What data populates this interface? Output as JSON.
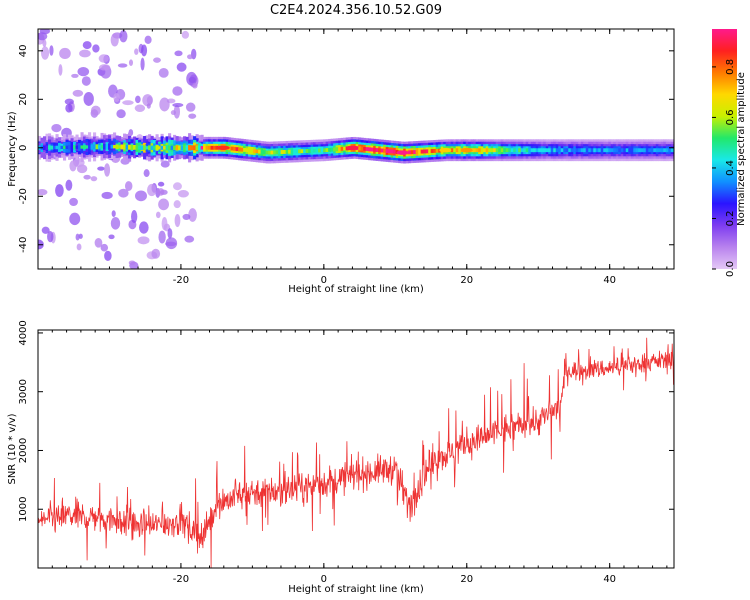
{
  "figure": {
    "title": "C2E4.2024.356.10.52.G09"
  },
  "chart_data": [
    {
      "type": "heatmap",
      "xlabel": "Height of straight line (km)",
      "ylabel": "Frequency (Hz)",
      "xlim": [
        -40,
        49
      ],
      "ylim": [
        -50,
        49
      ],
      "xticks": [
        -20,
        0,
        20,
        40
      ],
      "yticks": [
        -40,
        -20,
        0,
        20,
        40
      ],
      "colorbar": {
        "label": "Normalized spectral amplitude",
        "range": [
          0,
          0.95
        ],
        "ticks": [
          0.0,
          0.2,
          0.4,
          0.6,
          0.8
        ],
        "colormap": [
          "#e4c8f6",
          "#b882ee",
          "#7d3cf0",
          "#2a14ff",
          "#1090ff",
          "#19e8e8",
          "#22e86a",
          "#c8f000",
          "#ffd800",
          "#ff7a00",
          "#ff2020",
          "#ff1a8c"
        ]
      },
      "ridge": [
        {
          "x": -40,
          "y": 0,
          "amplitude": 0.35
        },
        {
          "x": -30,
          "y": 0.5,
          "amplitude": 0.4
        },
        {
          "x": -25,
          "y": 0,
          "amplitude": 0.6
        },
        {
          "x": -20,
          "y": 0,
          "amplitude": 0.55
        },
        {
          "x": -14,
          "y": 0,
          "amplitude": 0.85
        },
        {
          "x": -8,
          "y": -2,
          "amplitude": 0.6
        },
        {
          "x": 0,
          "y": -1,
          "amplitude": 0.5
        },
        {
          "x": 4,
          "y": 0,
          "amplitude": 0.9
        },
        {
          "x": 11,
          "y": -2,
          "amplitude": 0.95
        },
        {
          "x": 17,
          "y": -1,
          "amplitude": 0.7
        },
        {
          "x": 20,
          "y": -1,
          "amplitude": 0.75
        },
        {
          "x": 30,
          "y": -1,
          "amplitude": 0.4
        },
        {
          "x": 40,
          "y": -1,
          "amplitude": 0.35
        },
        {
          "x": 49,
          "y": -1,
          "amplitude": 0.35
        }
      ],
      "scatter_region": {
        "x": [
          -40,
          -18
        ],
        "y": [
          -50,
          49
        ],
        "amplitude": 0.1
      }
    },
    {
      "type": "line",
      "xlabel": "Height of straight line (km)",
      "ylabel": "SNR (10 * v/v)",
      "xlim": [
        -40,
        49
      ],
      "ylim": [
        0,
        4050
      ],
      "xticks": [
        -20,
        0,
        20,
        40
      ],
      "yticks": [
        1000,
        2000,
        3000,
        4000
      ],
      "color": "#ee3333",
      "series": [
        {
          "x": [
            -40,
            -35,
            -30,
            -25,
            -20,
            -17,
            -15,
            -10,
            -5,
            0,
            5,
            10,
            12,
            15,
            20,
            25,
            30,
            33,
            34,
            40,
            45,
            49
          ],
          "y": [
            800,
            900,
            850,
            700,
            800,
            500,
            1100,
            1300,
            1300,
            1450,
            1600,
            1700,
            1050,
            1800,
            2100,
            2350,
            2500,
            2750,
            3350,
            3400,
            3500,
            3550
          ]
        }
      ]
    }
  ]
}
